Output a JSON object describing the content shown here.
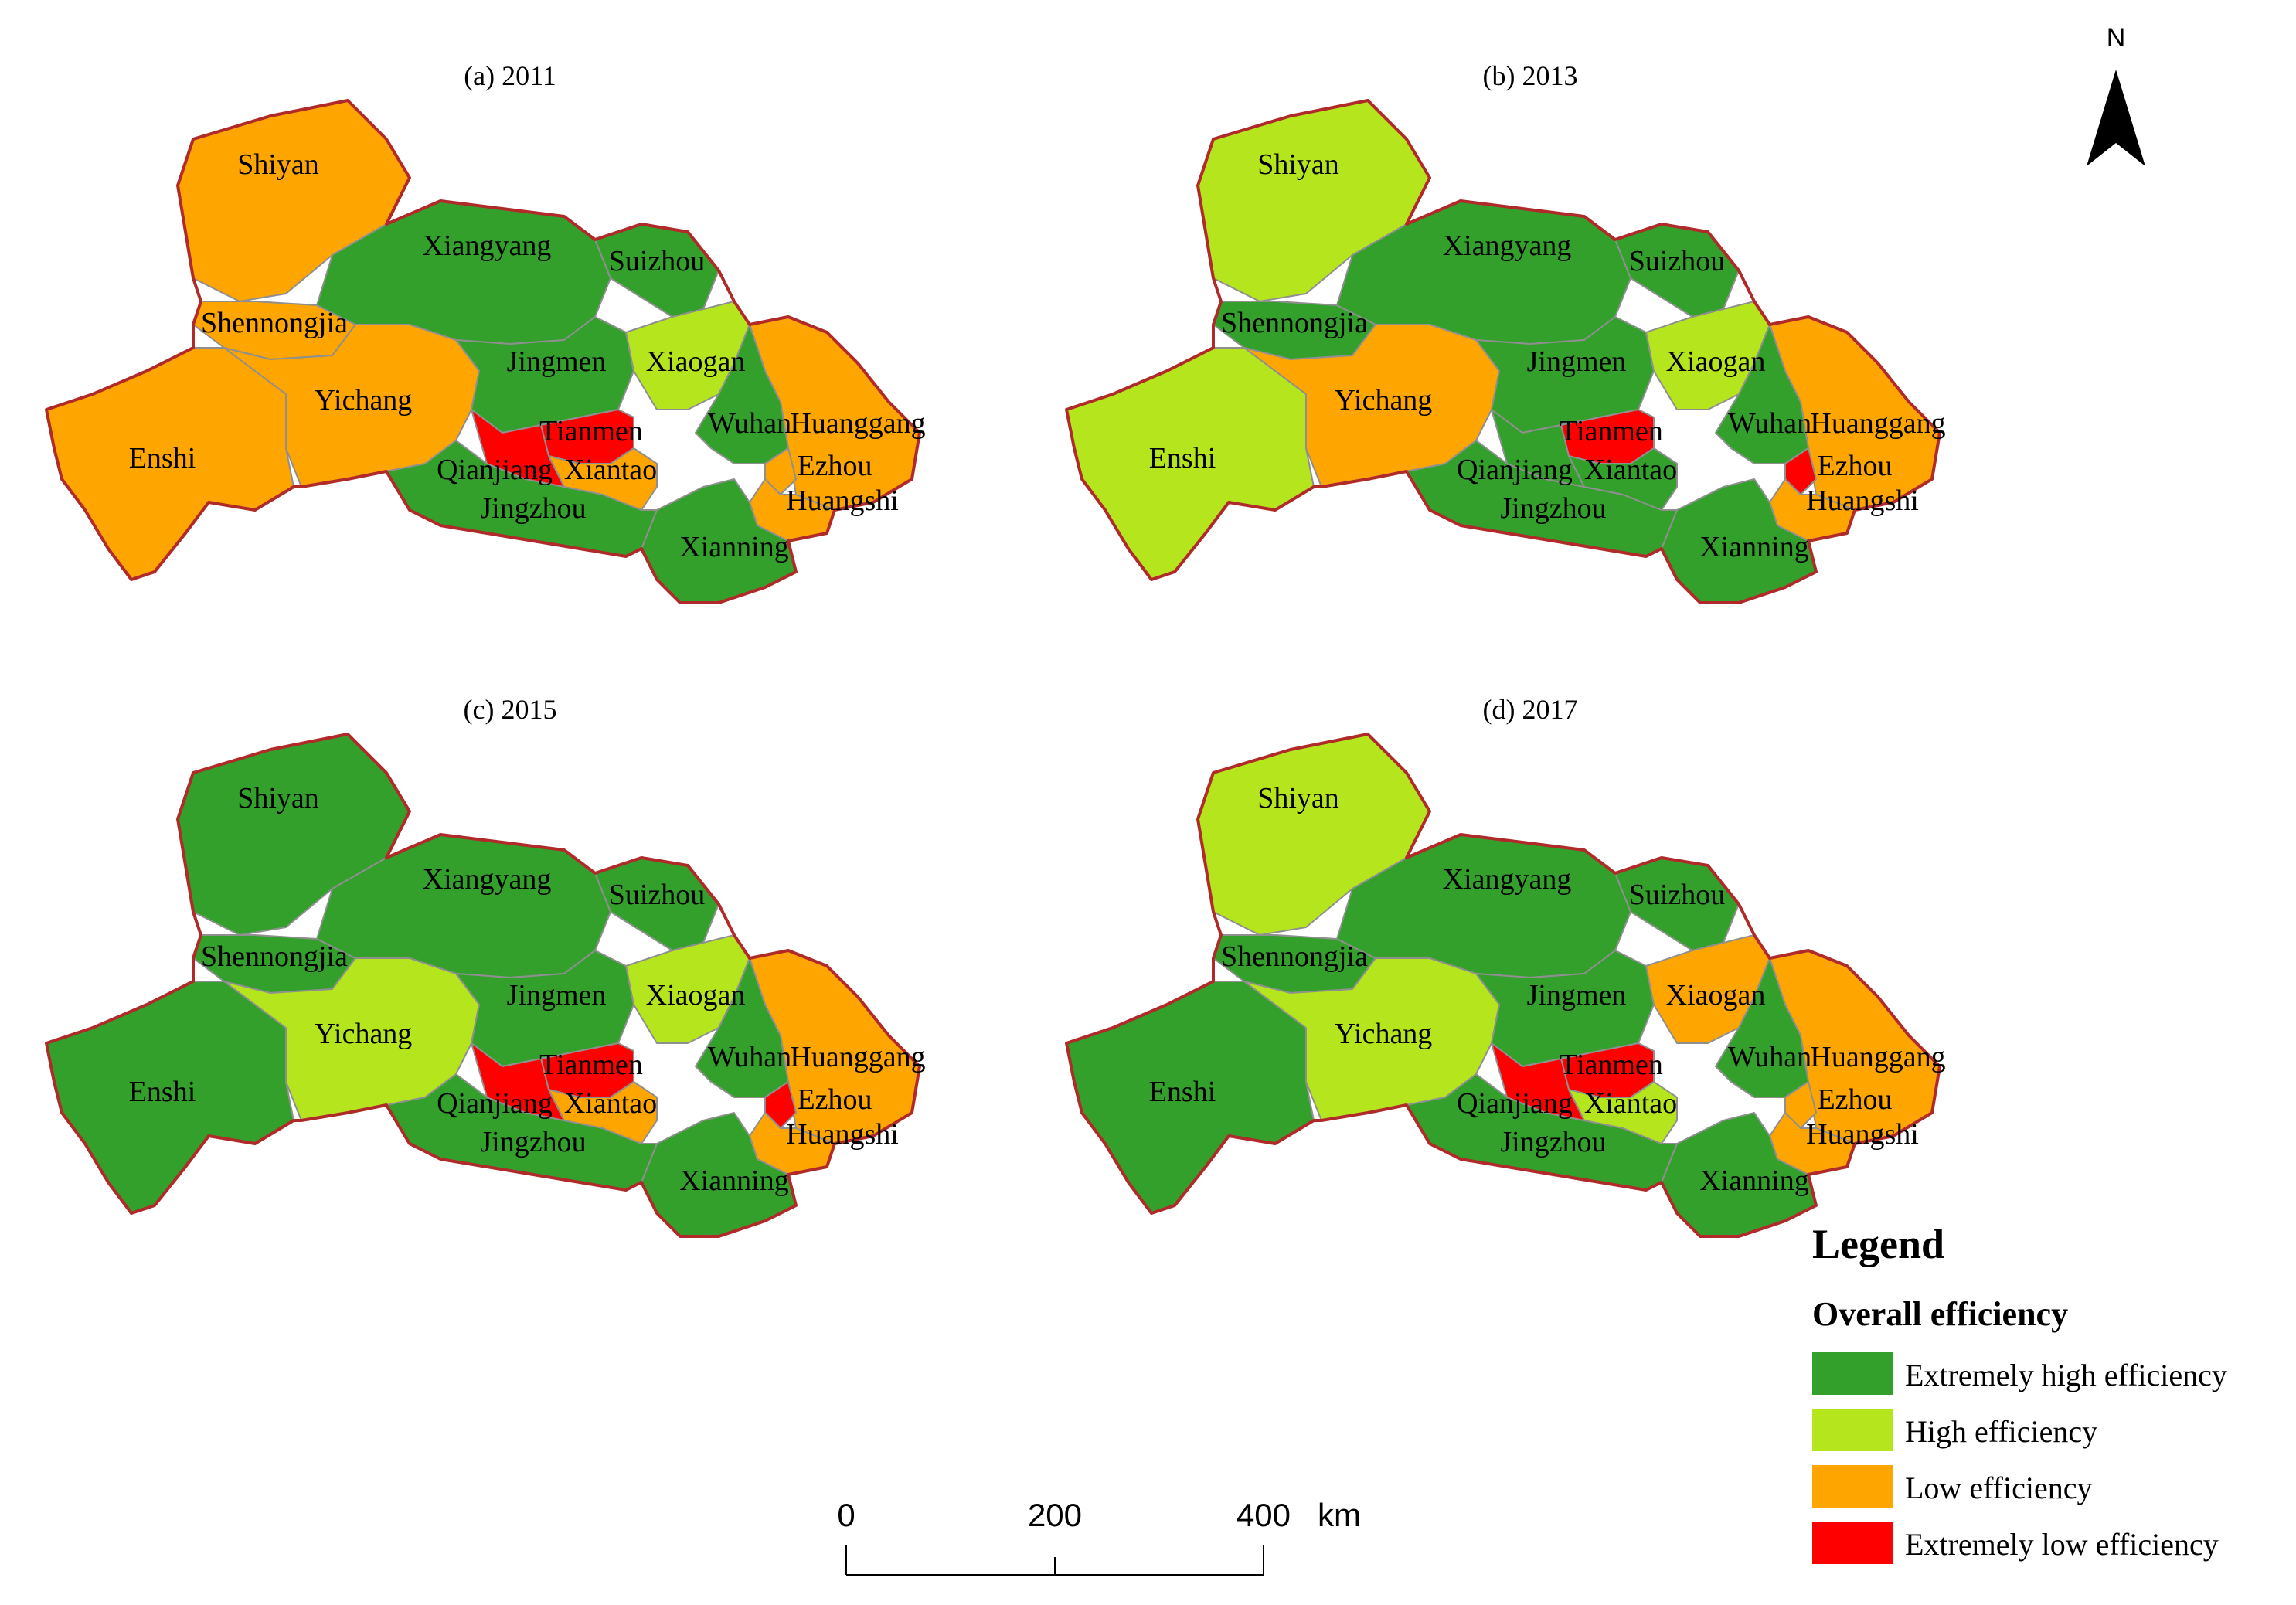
{
  "colors": {
    "extremely_high": "#33a02c",
    "high": "#b5e61d",
    "low": "#ffa500",
    "extremely_low": "#ff0000",
    "outline": "#b02a2a"
  },
  "maps": [
    {
      "title": "(a) 2011",
      "classes": {
        "Shiyan": "low",
        "Shennongjia": "low",
        "Xiangyang": "extremely_high",
        "Suizhou": "extremely_high",
        "Enshi": "low",
        "Yichang": "low",
        "Jingmen": "extremely_high",
        "Xiaogan": "high",
        "Wuhan": "extremely_high",
        "Huanggang": "low",
        "Ezhou": "low",
        "Huangshi": "low",
        "Xianning": "extremely_high",
        "Jingzhou": "extremely_high",
        "Tianmen": "extremely_low",
        "Qianjiang": "extremely_low",
        "Xiantao": "low"
      }
    },
    {
      "title": "(b) 2013",
      "classes": {
        "Shiyan": "high",
        "Shennongjia": "extremely_high",
        "Xiangyang": "extremely_high",
        "Suizhou": "extremely_high",
        "Enshi": "high",
        "Yichang": "low",
        "Jingmen": "extremely_high",
        "Xiaogan": "high",
        "Wuhan": "extremely_high",
        "Huanggang": "low",
        "Ezhou": "extremely_low",
        "Huangshi": "low",
        "Xianning": "extremely_high",
        "Jingzhou": "extremely_high",
        "Tianmen": "extremely_low",
        "Qianjiang": "extremely_high",
        "Xiantao": "extremely_high"
      }
    },
    {
      "title": "(c) 2015",
      "classes": {
        "Shiyan": "extremely_high",
        "Shennongjia": "extremely_high",
        "Xiangyang": "extremely_high",
        "Suizhou": "extremely_high",
        "Enshi": "extremely_high",
        "Yichang": "high",
        "Jingmen": "extremely_high",
        "Xiaogan": "high",
        "Wuhan": "extremely_high",
        "Huanggang": "low",
        "Ezhou": "extremely_low",
        "Huangshi": "low",
        "Xianning": "extremely_high",
        "Jingzhou": "extremely_high",
        "Tianmen": "extremely_low",
        "Qianjiang": "extremely_low",
        "Xiantao": "low"
      }
    },
    {
      "title": "(d) 2017",
      "classes": {
        "Shiyan": "high",
        "Shennongjia": "extremely_high",
        "Xiangyang": "extremely_high",
        "Suizhou": "extremely_high",
        "Enshi": "extremely_high",
        "Yichang": "high",
        "Jingmen": "extremely_high",
        "Xiaogan": "low",
        "Wuhan": "extremely_high",
        "Huanggang": "low",
        "Ezhou": "low",
        "Huangshi": "low",
        "Xianning": "extremely_high",
        "Jingzhou": "extremely_high",
        "Tianmen": "extremely_low",
        "Qianjiang": "extremely_low",
        "Xiantao": "high"
      }
    }
  ],
  "region_labels": [
    "Shiyan",
    "Shennongjia",
    "Xiangyang",
    "Suizhou",
    "Enshi",
    "Yichang",
    "Jingmen",
    "Xiaogan",
    "Wuhan",
    "Huanggang",
    "Ezhou",
    "Huangshi",
    "Xianning",
    "Jingzhou",
    "Tianmen",
    "Qianjiang",
    "Xiantao"
  ],
  "north_arrow": {
    "label": "N",
    "icon": "north-arrow-icon"
  },
  "scale_bar": {
    "ticks": [
      "0",
      "200",
      "400"
    ],
    "unit": "km"
  },
  "legend": {
    "title": "Legend",
    "subtitle": "Overall efficiency",
    "items": [
      {
        "label": "Extremely high efficiency",
        "class": "extremely_high"
      },
      {
        "label": "High efficiency",
        "class": "high"
      },
      {
        "label": "Low efficiency",
        "class": "low"
      },
      {
        "label": "Extremely low efficiency",
        "class": "extremely_low"
      }
    ]
  }
}
